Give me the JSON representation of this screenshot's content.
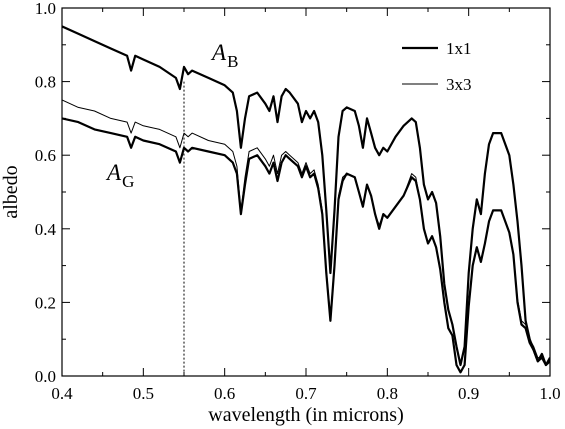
{
  "chart_data": {
    "type": "line",
    "xlabel": "wavelength (in microns)",
    "ylabel": "albedo",
    "xlim": [
      0.4,
      1.0
    ],
    "ylim": [
      0.0,
      1.0
    ],
    "x_ticks": [
      "0.4",
      "0.5",
      "0.6",
      "0.7",
      "0.8",
      "0.9",
      "1.0"
    ],
    "y_ticks": [
      "0.0",
      "0.2",
      "0.4",
      "0.6",
      "0.8",
      "1.0"
    ],
    "grid": false,
    "legend_position": "top-right",
    "legend": [
      {
        "label": "1x1",
        "style": "thick"
      },
      {
        "label": "3x3",
        "style": "thin"
      }
    ],
    "annotations": [
      {
        "text": "A",
        "sub": "B",
        "x": 0.618,
        "y": 0.85
      },
      {
        "text": "A",
        "sub": "G",
        "x": 0.457,
        "y": 0.52
      }
    ],
    "reference_line": {
      "x": 0.55,
      "style": "dotted"
    },
    "series": [
      {
        "style": "thick",
        "x": [
          0.4,
          0.42,
          0.44,
          0.46,
          0.48,
          0.485,
          0.49,
          0.5,
          0.52,
          0.54,
          0.545,
          0.55,
          0.555,
          0.56,
          0.58,
          0.6,
          0.61,
          0.615,
          0.62,
          0.625,
          0.63,
          0.64,
          0.65,
          0.655,
          0.66,
          0.665,
          0.67,
          0.675,
          0.68,
          0.69,
          0.695,
          0.7,
          0.705,
          0.71,
          0.715,
          0.72,
          0.725,
          0.73,
          0.735,
          0.74,
          0.745,
          0.75,
          0.76,
          0.765,
          0.77,
          0.775,
          0.78,
          0.785,
          0.79,
          0.795,
          0.8,
          0.81,
          0.82,
          0.83,
          0.835,
          0.84,
          0.845,
          0.85,
          0.855,
          0.86,
          0.865,
          0.87,
          0.875,
          0.88,
          0.885,
          0.89,
          0.895,
          0.9,
          0.905,
          0.91,
          0.915,
          0.92,
          0.925,
          0.93,
          0.94,
          0.95,
          0.955,
          0.96,
          0.965,
          0.97,
          0.975,
          0.98,
          0.985,
          0.99,
          0.995,
          1.0
        ],
        "y": [
          0.95,
          0.93,
          0.91,
          0.89,
          0.87,
          0.83,
          0.87,
          0.86,
          0.84,
          0.81,
          0.78,
          0.84,
          0.82,
          0.83,
          0.81,
          0.79,
          0.77,
          0.72,
          0.62,
          0.7,
          0.76,
          0.77,
          0.74,
          0.72,
          0.76,
          0.69,
          0.76,
          0.78,
          0.77,
          0.74,
          0.69,
          0.72,
          0.7,
          0.72,
          0.69,
          0.6,
          0.45,
          0.28,
          0.45,
          0.65,
          0.72,
          0.73,
          0.72,
          0.68,
          0.62,
          0.7,
          0.66,
          0.62,
          0.6,
          0.62,
          0.61,
          0.65,
          0.68,
          0.7,
          0.69,
          0.62,
          0.52,
          0.48,
          0.5,
          0.47,
          0.38,
          0.25,
          0.18,
          0.14,
          0.08,
          0.03,
          0.08,
          0.28,
          0.4,
          0.48,
          0.44,
          0.55,
          0.63,
          0.66,
          0.66,
          0.6,
          0.52,
          0.42,
          0.3,
          0.15,
          0.1,
          0.07,
          0.04,
          0.06,
          0.03,
          0.04
        ]
      },
      {
        "style": "thick",
        "x": [
          0.4,
          0.42,
          0.44,
          0.46,
          0.48,
          0.485,
          0.49,
          0.5,
          0.52,
          0.54,
          0.545,
          0.55,
          0.555,
          0.56,
          0.58,
          0.6,
          0.61,
          0.615,
          0.62,
          0.625,
          0.63,
          0.64,
          0.65,
          0.655,
          0.66,
          0.665,
          0.67,
          0.675,
          0.68,
          0.69,
          0.695,
          0.7,
          0.705,
          0.71,
          0.715,
          0.72,
          0.725,
          0.73,
          0.735,
          0.74,
          0.745,
          0.75,
          0.76,
          0.765,
          0.77,
          0.775,
          0.78,
          0.785,
          0.79,
          0.795,
          0.8,
          0.81,
          0.82,
          0.83,
          0.835,
          0.84,
          0.845,
          0.85,
          0.855,
          0.86,
          0.865,
          0.87,
          0.875,
          0.88,
          0.885,
          0.89,
          0.895,
          0.9,
          0.905,
          0.91,
          0.915,
          0.92,
          0.925,
          0.93,
          0.94,
          0.95,
          0.955,
          0.96,
          0.965,
          0.97,
          0.975,
          0.98,
          0.985,
          0.99,
          0.995,
          1.0
        ],
        "y": [
          0.7,
          0.69,
          0.67,
          0.66,
          0.65,
          0.62,
          0.65,
          0.64,
          0.63,
          0.61,
          0.58,
          0.62,
          0.61,
          0.62,
          0.61,
          0.6,
          0.58,
          0.55,
          0.44,
          0.52,
          0.59,
          0.6,
          0.57,
          0.55,
          0.58,
          0.53,
          0.58,
          0.6,
          0.59,
          0.57,
          0.54,
          0.57,
          0.54,
          0.55,
          0.51,
          0.44,
          0.28,
          0.15,
          0.3,
          0.48,
          0.53,
          0.55,
          0.54,
          0.5,
          0.46,
          0.52,
          0.49,
          0.44,
          0.4,
          0.44,
          0.43,
          0.46,
          0.49,
          0.54,
          0.53,
          0.48,
          0.4,
          0.36,
          0.38,
          0.35,
          0.29,
          0.2,
          0.13,
          0.11,
          0.03,
          0.01,
          0.03,
          0.19,
          0.3,
          0.35,
          0.31,
          0.36,
          0.42,
          0.45,
          0.45,
          0.39,
          0.33,
          0.2,
          0.14,
          0.13,
          0.09,
          0.07,
          0.04,
          0.05,
          0.03,
          0.05
        ]
      },
      {
        "style": "thin",
        "x": [
          0.4,
          0.42,
          0.44,
          0.46,
          0.48,
          0.485,
          0.49,
          0.5,
          0.52,
          0.54,
          0.545,
          0.55,
          0.555,
          0.56,
          0.58,
          0.6,
          0.61,
          0.615,
          0.62,
          0.625,
          0.63,
          0.64,
          0.65,
          0.655,
          0.66,
          0.665,
          0.67,
          0.675,
          0.68,
          0.69,
          0.695,
          0.7,
          0.705,
          0.71,
          0.715,
          0.72,
          0.725,
          0.73,
          0.735,
          0.74,
          0.745,
          0.75,
          0.76,
          0.765,
          0.77,
          0.775,
          0.78,
          0.785,
          0.79,
          0.795,
          0.8,
          0.81,
          0.82,
          0.83,
          0.835,
          0.84,
          0.845,
          0.85,
          0.855,
          0.86,
          0.865,
          0.87,
          0.875,
          0.88,
          0.885,
          0.89,
          0.895,
          0.9,
          0.905,
          0.91,
          0.915,
          0.92,
          0.925,
          0.93,
          0.94,
          0.95,
          0.955,
          0.96,
          0.965,
          0.97,
          0.975,
          0.98,
          0.985,
          0.99,
          0.995,
          1.0
        ],
        "y": [
          0.75,
          0.73,
          0.72,
          0.7,
          0.69,
          0.66,
          0.69,
          0.68,
          0.67,
          0.65,
          0.62,
          0.66,
          0.65,
          0.66,
          0.64,
          0.63,
          0.61,
          0.57,
          0.45,
          0.54,
          0.61,
          0.62,
          0.59,
          0.57,
          0.6,
          0.55,
          0.6,
          0.61,
          0.6,
          0.58,
          0.55,
          0.58,
          0.55,
          0.56,
          0.52,
          0.45,
          0.29,
          0.16,
          0.31,
          0.49,
          0.54,
          0.55,
          0.54,
          0.5,
          0.46,
          0.52,
          0.49,
          0.44,
          0.41,
          0.44,
          0.43,
          0.46,
          0.49,
          0.55,
          0.54,
          0.48,
          0.4,
          0.36,
          0.38,
          0.35,
          0.29,
          0.2,
          0.13,
          0.11,
          0.03,
          0.01,
          0.03,
          0.19,
          0.3,
          0.35,
          0.31,
          0.36,
          0.42,
          0.45,
          0.45,
          0.39,
          0.33,
          0.21,
          0.15,
          0.14,
          0.1,
          0.08,
          0.05,
          0.05,
          0.03,
          0.05
        ]
      }
    ]
  }
}
